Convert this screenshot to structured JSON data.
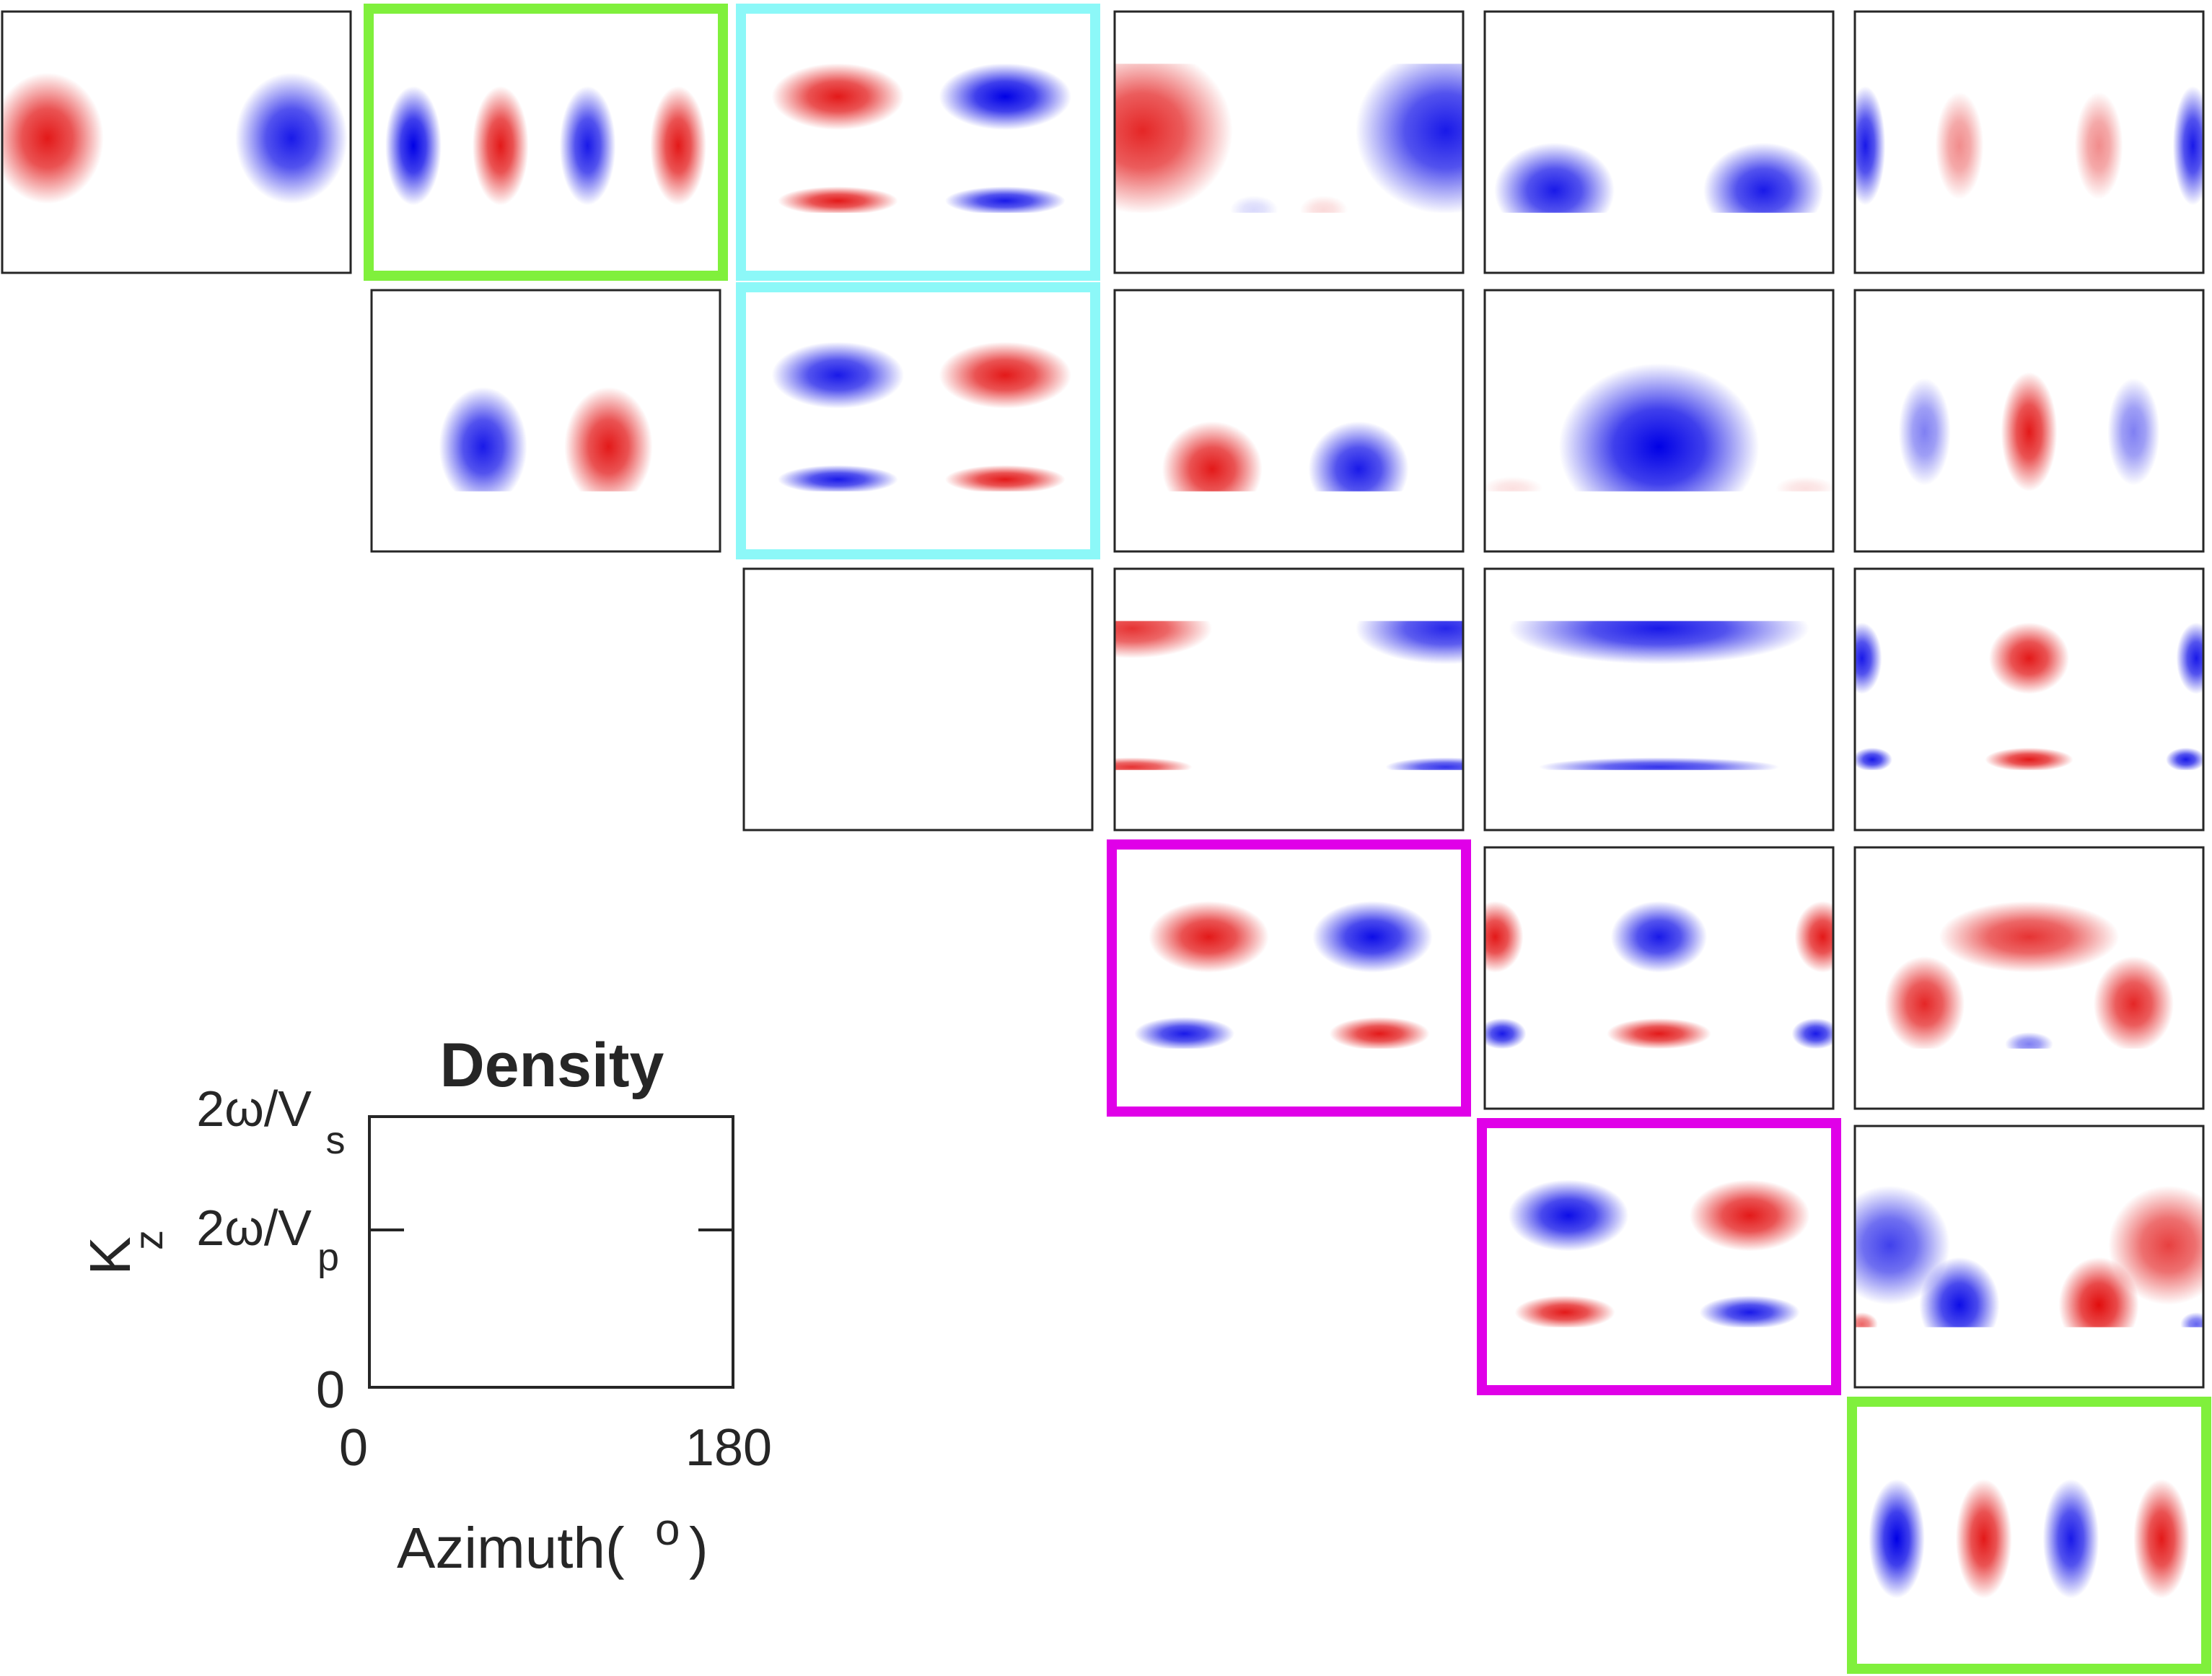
{
  "chart_data": {
    "type": "heatmap",
    "colors": {
      "positive": "#e00000",
      "negative": "#0000e6",
      "highlight_green": "#80f03c",
      "highlight_cyan": "#8cf8f8",
      "highlight_magenta": "#e000e8",
      "axis": "#262626"
    },
    "legend_panel": {
      "title": "Density",
      "ylabel": "K",
      "ylabel_sub": "z",
      "xlabel": "Azimuth(",
      "xlabel_sup": "o",
      "xlabel_close": ")",
      "yticks": [
        {
          "value": 0,
          "label": "0"
        },
        {
          "value": 0.58,
          "label": "2ω/V",
          "sub": "p"
        },
        {
          "value": 1.0,
          "label": "2ω/V",
          "sub": "s"
        }
      ],
      "xticks": [
        {
          "value": 0,
          "label": "0"
        },
        {
          "value": 180,
          "label": "180"
        }
      ],
      "xlim": [
        0,
        180
      ],
      "ylim": [
        0,
        1
      ]
    },
    "panels": [
      {
        "row": 0,
        "col": 0,
        "highlight": null,
        "blobs": [
          {
            "sign": 1,
            "azimuth": 0.13,
            "kz": 0.5,
            "w": 0.28,
            "h": 0.55,
            "amp": 0.9
          },
          {
            "sign": -1,
            "azimuth": 0.83,
            "kz": 0.5,
            "w": 0.28,
            "h": 0.55,
            "amp": 0.9
          }
        ]
      },
      {
        "row": 0,
        "col": 1,
        "highlight": "green",
        "blobs": [
          {
            "sign": -1,
            "azimuth": 0.12,
            "kz": 0.45,
            "w": 0.14,
            "h": 0.5,
            "amp": 1
          },
          {
            "sign": 1,
            "azimuth": 0.37,
            "kz": 0.45,
            "w": 0.14,
            "h": 0.5,
            "amp": 0.9
          },
          {
            "sign": -1,
            "azimuth": 0.62,
            "kz": 0.45,
            "w": 0.14,
            "h": 0.5,
            "amp": 0.9
          },
          {
            "sign": 1,
            "azimuth": 0.88,
            "kz": 0.45,
            "w": 0.14,
            "h": 0.5,
            "amp": 0.9
          }
        ]
      },
      {
        "row": 0,
        "col": 2,
        "highlight": "cyan",
        "blobs": [
          {
            "sign": 1,
            "azimuth": 0.27,
            "kz": 0.78,
            "w": 0.33,
            "h": 0.28,
            "amp": 0.9
          },
          {
            "sign": -1,
            "azimuth": 0.75,
            "kz": 0.78,
            "w": 0.33,
            "h": 0.28,
            "amp": 1
          },
          {
            "sign": 1,
            "azimuth": 0.27,
            "kz": 0.08,
            "w": 0.3,
            "h": 0.12,
            "amp": 0.9
          },
          {
            "sign": -1,
            "azimuth": 0.75,
            "kz": 0.08,
            "w": 0.3,
            "h": 0.12,
            "amp": 0.9
          }
        ]
      },
      {
        "row": 0,
        "col": 3,
        "highlight": null,
        "blobs": [
          {
            "sign": 1,
            "azimuth": 0.08,
            "kz": 0.55,
            "w": 0.45,
            "h": 0.7,
            "amp": 0.85
          },
          {
            "sign": -1,
            "azimuth": 0.95,
            "kz": 0.55,
            "w": 0.45,
            "h": 0.7,
            "amp": 0.9
          },
          {
            "sign": -1,
            "azimuth": 0.4,
            "kz": 0.02,
            "w": 0.12,
            "h": 0.12,
            "amp": 0.15
          },
          {
            "sign": 1,
            "azimuth": 0.6,
            "kz": 0.02,
            "w": 0.12,
            "h": 0.12,
            "amp": 0.15
          }
        ]
      },
      {
        "row": 0,
        "col": 4,
        "highlight": null,
        "blobs": [
          {
            "sign": -1,
            "azimuth": 0.2,
            "kz": 0.15,
            "w": 0.3,
            "h": 0.4,
            "amp": 0.9
          },
          {
            "sign": -1,
            "azimuth": 0.8,
            "kz": 0.15,
            "w": 0.3,
            "h": 0.4,
            "amp": 0.9
          }
        ]
      },
      {
        "row": 0,
        "col": 5,
        "highlight": null,
        "blobs": [
          {
            "sign": -1,
            "azimuth": 0.03,
            "kz": 0.45,
            "w": 0.1,
            "h": 0.5,
            "amp": 0.9
          },
          {
            "sign": 1,
            "azimuth": 0.3,
            "kz": 0.45,
            "w": 0.12,
            "h": 0.45,
            "amp": 0.45
          },
          {
            "sign": 1,
            "azimuth": 0.7,
            "kz": 0.45,
            "w": 0.12,
            "h": 0.45,
            "amp": 0.45
          },
          {
            "sign": -1,
            "azimuth": 0.97,
            "kz": 0.45,
            "w": 0.1,
            "h": 0.5,
            "amp": 0.9
          }
        ]
      },
      {
        "row": 1,
        "col": 1,
        "highlight": null,
        "blobs": [
          {
            "sign": -1,
            "azimuth": 0.32,
            "kz": 0.3,
            "w": 0.22,
            "h": 0.5,
            "amp": 0.9
          },
          {
            "sign": 1,
            "azimuth": 0.68,
            "kz": 0.3,
            "w": 0.22,
            "h": 0.5,
            "amp": 0.9
          }
        ]
      },
      {
        "row": 1,
        "col": 2,
        "highlight": "cyan",
        "blobs": [
          {
            "sign": -1,
            "azimuth": 0.27,
            "kz": 0.78,
            "w": 0.33,
            "h": 0.28,
            "amp": 0.9
          },
          {
            "sign": 1,
            "azimuth": 0.75,
            "kz": 0.78,
            "w": 0.33,
            "h": 0.28,
            "amp": 0.9
          },
          {
            "sign": -1,
            "azimuth": 0.27,
            "kz": 0.08,
            "w": 0.3,
            "h": 0.12,
            "amp": 0.9
          },
          {
            "sign": 1,
            "azimuth": 0.75,
            "kz": 0.08,
            "w": 0.3,
            "h": 0.12,
            "amp": 0.9
          }
        ]
      },
      {
        "row": 1,
        "col": 3,
        "highlight": null,
        "blobs": [
          {
            "sign": 1,
            "azimuth": 0.28,
            "kz": 0.15,
            "w": 0.25,
            "h": 0.4,
            "amp": 0.9
          },
          {
            "sign": -1,
            "azimuth": 0.7,
            "kz": 0.15,
            "w": 0.25,
            "h": 0.4,
            "amp": 0.9
          }
        ]
      },
      {
        "row": 1,
        "col": 4,
        "highlight": null,
        "blobs": [
          {
            "sign": -1,
            "azimuth": 0.5,
            "kz": 0.3,
            "w": 0.5,
            "h": 0.7,
            "amp": 1
          },
          {
            "sign": 1,
            "azimuth": 0.08,
            "kz": 0.02,
            "w": 0.15,
            "h": 0.1,
            "amp": 0.12
          },
          {
            "sign": 1,
            "azimuth": 0.92,
            "kz": 0.02,
            "w": 0.15,
            "h": 0.1,
            "amp": 0.12
          }
        ]
      },
      {
        "row": 1,
        "col": 5,
        "highlight": null,
        "blobs": [
          {
            "sign": -1,
            "azimuth": 0.2,
            "kz": 0.4,
            "w": 0.13,
            "h": 0.45,
            "amp": 0.5
          },
          {
            "sign": 1,
            "azimuth": 0.5,
            "kz": 0.4,
            "w": 0.14,
            "h": 0.5,
            "amp": 0.9
          },
          {
            "sign": -1,
            "azimuth": 0.8,
            "kz": 0.4,
            "w": 0.13,
            "h": 0.45,
            "amp": 0.5
          }
        ]
      },
      {
        "row": 2,
        "col": 2,
        "highlight": null,
        "blobs": []
      },
      {
        "row": 2,
        "col": 3,
        "highlight": null,
        "blobs": [
          {
            "sign": 1,
            "azimuth": 0.05,
            "kz": 0.95,
            "w": 0.4,
            "h": 0.25,
            "amp": 0.8
          },
          {
            "sign": -1,
            "azimuth": 0.95,
            "kz": 0.95,
            "w": 0.45,
            "h": 0.3,
            "amp": 0.85
          },
          {
            "sign": 1,
            "azimuth": 0.05,
            "kz": 0.02,
            "w": 0.3,
            "h": 0.08,
            "amp": 0.8
          },
          {
            "sign": -1,
            "azimuth": 0.95,
            "kz": 0.02,
            "w": 0.3,
            "h": 0.08,
            "amp": 0.8
          }
        ]
      },
      {
        "row": 2,
        "col": 4,
        "highlight": null,
        "blobs": [
          {
            "sign": -1,
            "azimuth": 0.5,
            "kz": 0.95,
            "w": 0.75,
            "h": 0.3,
            "amp": 0.9
          },
          {
            "sign": -1,
            "azimuth": 0.5,
            "kz": 0.02,
            "w": 0.6,
            "h": 0.08,
            "amp": 0.8
          }
        ]
      },
      {
        "row": 2,
        "col": 5,
        "highlight": null,
        "blobs": [
          {
            "sign": -1,
            "azimuth": 0.02,
            "kz": 0.75,
            "w": 0.1,
            "h": 0.3,
            "amp": 0.9
          },
          {
            "sign": 1,
            "azimuth": 0.5,
            "kz": 0.75,
            "w": 0.2,
            "h": 0.3,
            "amp": 0.9
          },
          {
            "sign": -1,
            "azimuth": 0.98,
            "kz": 0.75,
            "w": 0.1,
            "h": 0.3,
            "amp": 0.9
          },
          {
            "sign": -1,
            "azimuth": 0.05,
            "kz": 0.07,
            "w": 0.1,
            "h": 0.1,
            "amp": 0.9
          },
          {
            "sign": 1,
            "azimuth": 0.5,
            "kz": 0.07,
            "w": 0.22,
            "h": 0.1,
            "amp": 0.9
          },
          {
            "sign": -1,
            "azimuth": 0.95,
            "kz": 0.07,
            "w": 0.1,
            "h": 0.1,
            "amp": 0.9
          }
        ]
      },
      {
        "row": 3,
        "col": 3,
        "highlight": "magenta",
        "blobs": [
          {
            "sign": 1,
            "azimuth": 0.27,
            "kz": 0.75,
            "w": 0.3,
            "h": 0.3,
            "amp": 0.9
          },
          {
            "sign": -1,
            "azimuth": 0.74,
            "kz": 0.75,
            "w": 0.3,
            "h": 0.3,
            "amp": 0.95
          },
          {
            "sign": -1,
            "azimuth": 0.2,
            "kz": 0.1,
            "w": 0.25,
            "h": 0.14,
            "amp": 0.9
          },
          {
            "sign": 1,
            "azimuth": 0.76,
            "kz": 0.1,
            "w": 0.25,
            "h": 0.14,
            "amp": 0.9
          }
        ]
      },
      {
        "row": 3,
        "col": 4,
        "highlight": null,
        "blobs": [
          {
            "sign": 1,
            "azimuth": 0.03,
            "kz": 0.75,
            "w": 0.14,
            "h": 0.3,
            "amp": 0.9
          },
          {
            "sign": -1,
            "azimuth": 0.5,
            "kz": 0.75,
            "w": 0.24,
            "h": 0.3,
            "amp": 0.9
          },
          {
            "sign": 1,
            "azimuth": 0.97,
            "kz": 0.75,
            "w": 0.14,
            "h": 0.3,
            "amp": 0.9
          },
          {
            "sign": -1,
            "azimuth": 0.05,
            "kz": 0.1,
            "w": 0.12,
            "h": 0.13,
            "amp": 0.9
          },
          {
            "sign": 1,
            "azimuth": 0.5,
            "kz": 0.1,
            "w": 0.26,
            "h": 0.13,
            "amp": 0.9
          },
          {
            "sign": -1,
            "azimuth": 0.95,
            "kz": 0.1,
            "w": 0.12,
            "h": 0.13,
            "amp": 0.9
          }
        ]
      },
      {
        "row": 3,
        "col": 5,
        "highlight": null,
        "blobs": [
          {
            "sign": 1,
            "azimuth": 0.2,
            "kz": 0.3,
            "w": 0.2,
            "h": 0.4,
            "amp": 0.85
          },
          {
            "sign": 1,
            "azimuth": 0.8,
            "kz": 0.3,
            "w": 0.2,
            "h": 0.4,
            "amp": 0.85
          },
          {
            "sign": 1,
            "azimuth": 0.5,
            "kz": 0.75,
            "w": 0.45,
            "h": 0.3,
            "amp": 0.8
          },
          {
            "sign": -1,
            "azimuth": 0.5,
            "kz": 0.03,
            "w": 0.12,
            "h": 0.1,
            "amp": 0.5
          }
        ]
      },
      {
        "row": 4,
        "col": 4,
        "highlight": "magenta",
        "blobs": [
          {
            "sign": -1,
            "azimuth": 0.24,
            "kz": 0.75,
            "w": 0.3,
            "h": 0.3,
            "amp": 0.95
          },
          {
            "sign": 1,
            "azimuth": 0.76,
            "kz": 0.75,
            "w": 0.3,
            "h": 0.3,
            "amp": 0.9
          },
          {
            "sign": 1,
            "azimuth": 0.23,
            "kz": 0.1,
            "w": 0.25,
            "h": 0.14,
            "amp": 0.9
          },
          {
            "sign": -1,
            "azimuth": 0.76,
            "kz": 0.1,
            "w": 0.25,
            "h": 0.14,
            "amp": 0.9
          }
        ]
      },
      {
        "row": 4,
        "col": 5,
        "highlight": null,
        "blobs": [
          {
            "sign": -1,
            "azimuth": 0.1,
            "kz": 0.55,
            "w": 0.3,
            "h": 0.5,
            "amp": 0.75
          },
          {
            "sign": -1,
            "azimuth": 0.3,
            "kz": 0.15,
            "w": 0.2,
            "h": 0.4,
            "amp": 0.95
          },
          {
            "sign": 1,
            "azimuth": 0.9,
            "kz": 0.55,
            "w": 0.3,
            "h": 0.5,
            "amp": 0.75
          },
          {
            "sign": 1,
            "azimuth": 0.7,
            "kz": 0.15,
            "w": 0.2,
            "h": 0.4,
            "amp": 0.95
          },
          {
            "sign": 1,
            "azimuth": 0.02,
            "kz": 0.02,
            "w": 0.08,
            "h": 0.1,
            "amp": 0.6
          },
          {
            "sign": -1,
            "azimuth": 0.98,
            "kz": 0.02,
            "w": 0.08,
            "h": 0.1,
            "amp": 0.6
          }
        ]
      },
      {
        "row": 5,
        "col": 5,
        "highlight": "green",
        "blobs": [
          {
            "sign": -1,
            "azimuth": 0.12,
            "kz": 0.45,
            "w": 0.14,
            "h": 0.5,
            "amp": 1
          },
          {
            "sign": 1,
            "azimuth": 0.37,
            "kz": 0.45,
            "w": 0.14,
            "h": 0.5,
            "amp": 0.9
          },
          {
            "sign": -1,
            "azimuth": 0.62,
            "kz": 0.45,
            "w": 0.14,
            "h": 0.5,
            "amp": 0.9
          },
          {
            "sign": 1,
            "azimuth": 0.88,
            "kz": 0.45,
            "w": 0.14,
            "h": 0.5,
            "amp": 0.9
          }
        ]
      }
    ]
  }
}
